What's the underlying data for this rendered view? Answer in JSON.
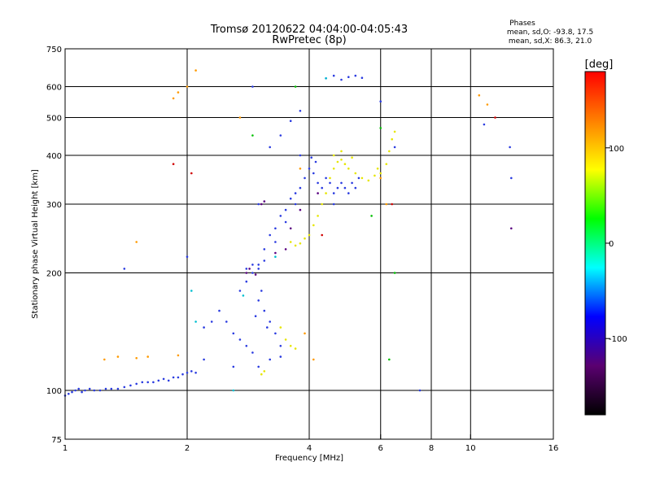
{
  "chart_data": {
    "type": "scatter",
    "title": "Tromsø 20120622 04:04:00-04:05:43",
    "subtitle": "RwPretec (8p)",
    "xlabel": "Frequency [MHz]",
    "ylabel": "Stationary phase Virtual Height [km]",
    "xscale": "log",
    "yscale": "log",
    "xlim": [
      1,
      16
    ],
    "ylim": [
      75,
      750
    ],
    "xticks": [
      1,
      2,
      4,
      6,
      8,
      10,
      16
    ],
    "yticks": [
      75,
      100,
      200,
      300,
      400,
      500,
      600,
      750
    ],
    "grid_x": [
      2,
      4,
      6,
      8,
      10
    ],
    "grid_y": [
      100,
      200,
      300,
      400,
      500,
      600
    ],
    "stats": {
      "heading": "Phases",
      "line_o": "mean, sd,O: -93.8, 17.5",
      "line_x": "mean, sd,X:  86.3, 21.0"
    },
    "colorbar": {
      "title": "[deg]",
      "min": -180,
      "max": 180,
      "ticks": [
        100,
        0,
        -100
      ],
      "stops": [
        "#000000",
        "#5a0070",
        "#0000ff",
        "#00ffff",
        "#00ff00",
        "#ffff00",
        "#ff8000",
        "#ff0000"
      ]
    },
    "series": [
      {
        "color": "#2a3be0",
        "points": [
          [
            1.0,
            97
          ],
          [
            1.02,
            98
          ],
          [
            1.04,
            99
          ],
          [
            1.06,
            100
          ],
          [
            1.08,
            101
          ],
          [
            1.1,
            99
          ],
          [
            1.12,
            100
          ],
          [
            1.15,
            101
          ],
          [
            1.18,
            100
          ],
          [
            1.22,
            100
          ],
          [
            1.26,
            101
          ],
          [
            1.3,
            101
          ],
          [
            1.35,
            101
          ],
          [
            1.4,
            102
          ],
          [
            1.45,
            103
          ],
          [
            1.5,
            104
          ],
          [
            1.55,
            105
          ],
          [
            1.6,
            105
          ],
          [
            1.65,
            105
          ],
          [
            1.7,
            106
          ],
          [
            1.75,
            107
          ],
          [
            1.8,
            106
          ],
          [
            1.85,
            108
          ],
          [
            1.9,
            108
          ],
          [
            1.95,
            110
          ],
          [
            2.0,
            111
          ],
          [
            2.05,
            112
          ],
          [
            2.1,
            111
          ],
          [
            2.2,
            145
          ],
          [
            2.3,
            150
          ],
          [
            2.4,
            160
          ],
          [
            2.5,
            150
          ],
          [
            2.6,
            140
          ],
          [
            2.7,
            135
          ],
          [
            2.8,
            130
          ],
          [
            2.9,
            125
          ],
          [
            2.95,
            155
          ],
          [
            3.0,
            170
          ],
          [
            3.05,
            180
          ],
          [
            3.1,
            160
          ],
          [
            3.15,
            145
          ],
          [
            3.2,
            150
          ],
          [
            3.3,
            140
          ],
          [
            3.4,
            130
          ],
          [
            2.7,
            180
          ],
          [
            2.8,
            190
          ],
          [
            2.9,
            200
          ],
          [
            3.0,
            210
          ],
          [
            3.1,
            230
          ],
          [
            3.2,
            250
          ],
          [
            3.3,
            260
          ],
          [
            3.4,
            280
          ],
          [
            3.5,
            290
          ],
          [
            3.6,
            310
          ],
          [
            3.7,
            320
          ],
          [
            3.8,
            330
          ],
          [
            3.9,
            350
          ],
          [
            4.0,
            370
          ],
          [
            4.1,
            360
          ],
          [
            4.2,
            340
          ],
          [
            4.3,
            330
          ],
          [
            4.4,
            350
          ],
          [
            4.5,
            340
          ],
          [
            4.6,
            320
          ],
          [
            4.7,
            330
          ],
          [
            4.8,
            340
          ],
          [
            4.9,
            330
          ],
          [
            5.0,
            320
          ],
          [
            5.1,
            340
          ],
          [
            5.2,
            330
          ],
          [
            5.3,
            350
          ],
          [
            2.8,
            205
          ],
          [
            2.9,
            210
          ],
          [
            3.0,
            205
          ],
          [
            3.1,
            215
          ],
          [
            3.3,
            240
          ],
          [
            3.5,
            270
          ],
          [
            3.7,
            300
          ],
          [
            4.05,
            395
          ],
          [
            4.15,
            385
          ],
          [
            4.4,
            630
          ],
          [
            4.6,
            640
          ],
          [
            4.8,
            625
          ],
          [
            5.0,
            635
          ],
          [
            5.2,
            640
          ],
          [
            5.4,
            632
          ],
          [
            3.2,
            420
          ],
          [
            3.4,
            450
          ],
          [
            3.6,
            490
          ],
          [
            3.8,
            520
          ],
          [
            1.4,
            205
          ],
          [
            2.0,
            220
          ],
          [
            2.9,
            600
          ],
          [
            3.0,
            300
          ],
          [
            3.8,
            400
          ],
          [
            4.6,
            300
          ],
          [
            6.0,
            550
          ],
          [
            6.5,
            420
          ],
          [
            10.8,
            480
          ],
          [
            12.5,
            420
          ],
          [
            12.6,
            350
          ],
          [
            7.5,
            100
          ],
          [
            2.2,
            120
          ],
          [
            2.6,
            115
          ],
          [
            3.0,
            115
          ],
          [
            3.2,
            120
          ],
          [
            3.4,
            122
          ]
        ]
      },
      {
        "color": "#e6e600",
        "points": [
          [
            3.6,
            240
          ],
          [
            3.7,
            235
          ],
          [
            3.8,
            238
          ],
          [
            3.9,
            245
          ],
          [
            4.0,
            250
          ],
          [
            4.1,
            265
          ],
          [
            4.2,
            280
          ],
          [
            4.3,
            300
          ],
          [
            4.4,
            320
          ],
          [
            4.5,
            350
          ],
          [
            4.6,
            370
          ],
          [
            4.7,
            385
          ],
          [
            4.8,
            390
          ],
          [
            4.9,
            380
          ],
          [
            5.0,
            370
          ],
          [
            5.2,
            360
          ],
          [
            5.4,
            350
          ],
          [
            5.6,
            345
          ],
          [
            5.8,
            355
          ],
          [
            5.9,
            370
          ],
          [
            6.0,
            360
          ],
          [
            6.2,
            380
          ],
          [
            6.3,
            410
          ],
          [
            6.4,
            440
          ],
          [
            6.5,
            460
          ],
          [
            3.4,
            145
          ],
          [
            3.5,
            135
          ],
          [
            3.6,
            130
          ],
          [
            3.7,
            128
          ],
          [
            3.05,
            110
          ],
          [
            3.1,
            112
          ],
          [
            4.6,
            400
          ],
          [
            4.8,
            410
          ],
          [
            5.1,
            395
          ]
        ]
      },
      {
        "color": "#ff9a00",
        "points": [
          [
            1.25,
            120
          ],
          [
            1.35,
            122
          ],
          [
            1.5,
            121
          ],
          [
            1.6,
            122
          ],
          [
            1.9,
            123
          ],
          [
            1.85,
            560
          ],
          [
            1.9,
            580
          ],
          [
            2.0,
            600
          ],
          [
            2.1,
            660
          ],
          [
            2.7,
            500
          ],
          [
            3.8,
            370
          ],
          [
            4.1,
            120
          ],
          [
            6.0,
            350
          ],
          [
            6.2,
            300
          ],
          [
            10.5,
            570
          ],
          [
            11.0,
            540
          ],
          [
            1.5,
            240
          ],
          [
            3.9,
            140
          ]
        ]
      },
      {
        "color": "#00c000",
        "points": [
          [
            2.9,
            450
          ],
          [
            3.7,
            600
          ],
          [
            6.3,
            120
          ],
          [
            5.7,
            280
          ],
          [
            6.5,
            200
          ],
          [
            6.0,
            470
          ]
        ]
      },
      {
        "color": "#d00000",
        "points": [
          [
            1.85,
            380
          ],
          [
            2.05,
            360
          ],
          [
            6.4,
            300
          ],
          [
            11.5,
            500
          ],
          [
            4.3,
            250
          ]
        ]
      },
      {
        "color": "#5a0080",
        "points": [
          [
            2.8,
            200
          ],
          [
            2.85,
            205
          ],
          [
            2.95,
            198
          ],
          [
            3.05,
            300
          ],
          [
            3.1,
            305
          ],
          [
            3.3,
            225
          ],
          [
            3.5,
            230
          ],
          [
            3.6,
            260
          ],
          [
            3.8,
            290
          ],
          [
            4.2,
            320
          ],
          [
            12.6,
            260
          ]
        ]
      },
      {
        "color": "#00bfd0",
        "points": [
          [
            2.05,
            180
          ],
          [
            2.1,
            150
          ],
          [
            2.6,
            100
          ],
          [
            3.3,
            220
          ],
          [
            2.75,
            175
          ],
          [
            4.4,
            630
          ]
        ]
      }
    ]
  }
}
